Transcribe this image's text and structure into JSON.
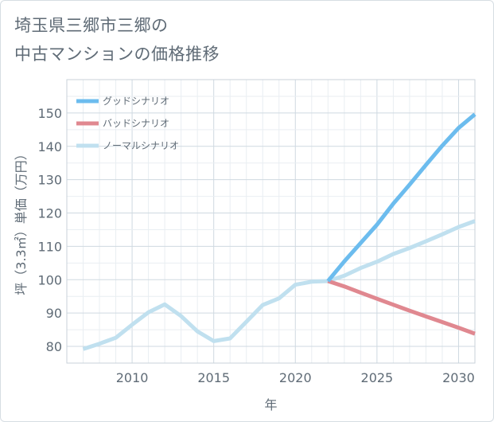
{
  "chart_data": {
    "type": "line",
    "title": [
      "埼玉県三郷市三郷の",
      "中古マンションの価格推移"
    ],
    "xlabel": "年",
    "ylabel": "坪（3.3㎡）単価（万円）",
    "xlim": [
      2006,
      2031
    ],
    "ylim": [
      75,
      160
    ],
    "x_ticks": [
      2010,
      2015,
      2020,
      2025,
      2030
    ],
    "y_ticks": [
      80,
      90,
      100,
      110,
      120,
      130,
      140,
      150
    ],
    "grid": true,
    "legend_position": "top-left",
    "series": [
      {
        "name": "グッドシナリオ",
        "color": "#6cbcee",
        "x": [
          2022,
          2023,
          2024,
          2025,
          2026,
          2027,
          2028,
          2029,
          2030,
          2031
        ],
        "y": [
          99.6,
          105.5,
          111.0,
          116.5,
          122.8,
          128.5,
          134.4,
          140.2,
          145.5,
          149.6
        ]
      },
      {
        "name": "バッドシナリオ",
        "color": "#e08890",
        "x": [
          2022,
          2023,
          2024,
          2025,
          2026,
          2027,
          2028,
          2029,
          2030,
          2031
        ],
        "y": [
          99.6,
          98.0,
          96.1,
          94.3,
          92.5,
          90.7,
          89.0,
          87.3,
          85.6,
          83.8
        ]
      },
      {
        "name": "ノーマルシナリオ",
        "color": "#c0e0ef",
        "x": [
          2007,
          2008,
          2009,
          2010,
          2011,
          2012,
          2013,
          2014,
          2015,
          2016,
          2017,
          2018,
          2019,
          2020,
          2021,
          2022,
          2023,
          2024,
          2025,
          2026,
          2027,
          2028,
          2029,
          2030,
          2031
        ],
        "y": [
          79.2,
          80.8,
          82.6,
          86.5,
          90.2,
          92.6,
          89.1,
          84.5,
          81.6,
          82.4,
          87.4,
          92.4,
          94.4,
          98.5,
          99.4,
          99.6,
          101.2,
          103.5,
          105.4,
          107.7,
          109.5,
          111.5,
          113.6,
          115.8,
          117.6
        ]
      }
    ]
  }
}
